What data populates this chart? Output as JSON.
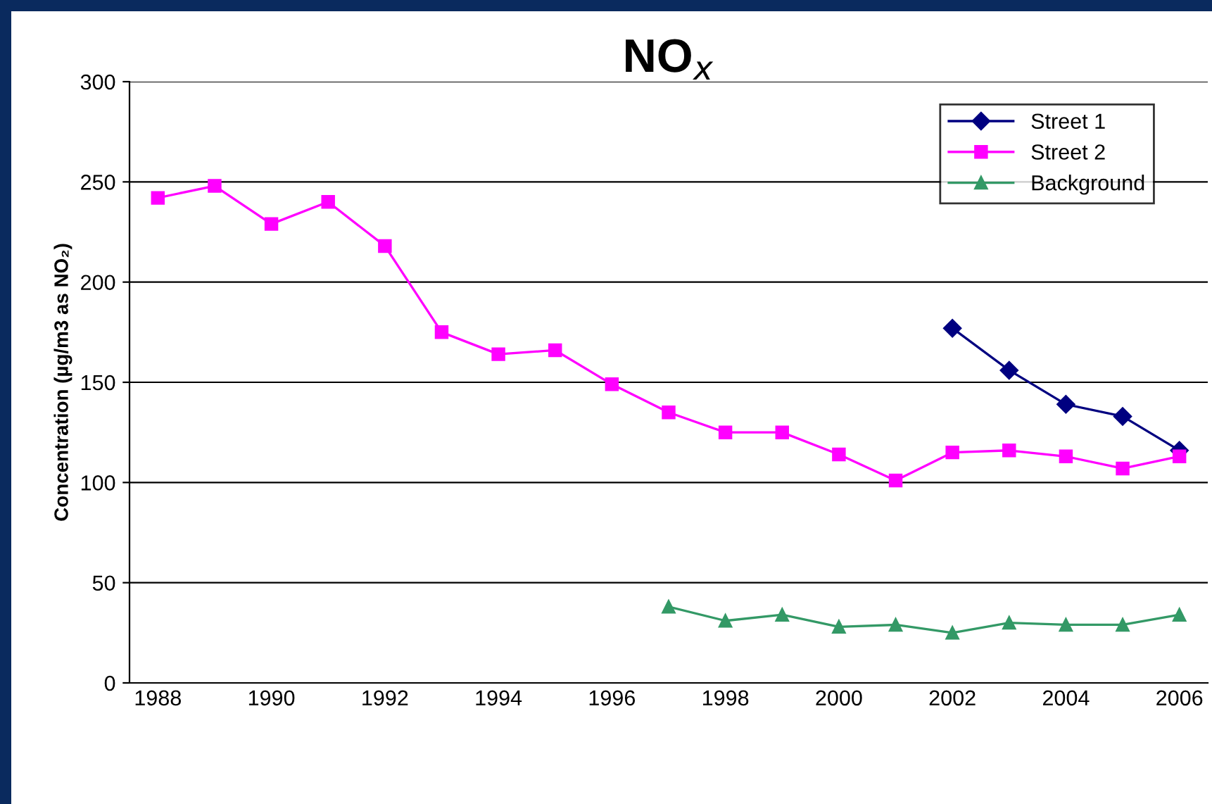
{
  "chart_data": {
    "type": "line",
    "title": "NO$_{x}$",
    "ylabel": "Concentration (µg/m3 as NO₂)",
    "categories": [
      "1988",
      null,
      "1990",
      null,
      "1992",
      null,
      "1994",
      null,
      "1996",
      null,
      "1998",
      null,
      "2000",
      null,
      "2002",
      null,
      "2004",
      null,
      "2006"
    ],
    "series": [
      {
        "name": "Street 1",
        "color": "#000080",
        "marker": "diamond",
        "values": [
          null,
          null,
          null,
          null,
          null,
          null,
          null,
          null,
          null,
          null,
          null,
          null,
          null,
          null,
          177,
          156,
          139,
          133,
          116
        ]
      },
      {
        "name": "Street 2",
        "color": "#ff00ff",
        "marker": "square",
        "values": [
          242,
          248,
          229,
          240,
          218,
          175,
          164,
          166,
          149,
          135,
          125,
          125,
          114,
          101,
          115,
          116,
          113,
          107,
          113
        ]
      },
      {
        "name": "Background",
        "color": "#339966",
        "marker": "triangle",
        "values": [
          null,
          null,
          null,
          null,
          null,
          null,
          null,
          null,
          null,
          38,
          31,
          34,
          28,
          29,
          25,
          30,
          29,
          29,
          34
        ]
      }
    ],
    "ylim": [
      0,
      300
    ],
    "yticks": [
      0,
      50,
      100,
      150,
      200,
      250,
      300
    ],
    "grid": "y",
    "legend": "top right",
    "line_style": "solid"
  }
}
